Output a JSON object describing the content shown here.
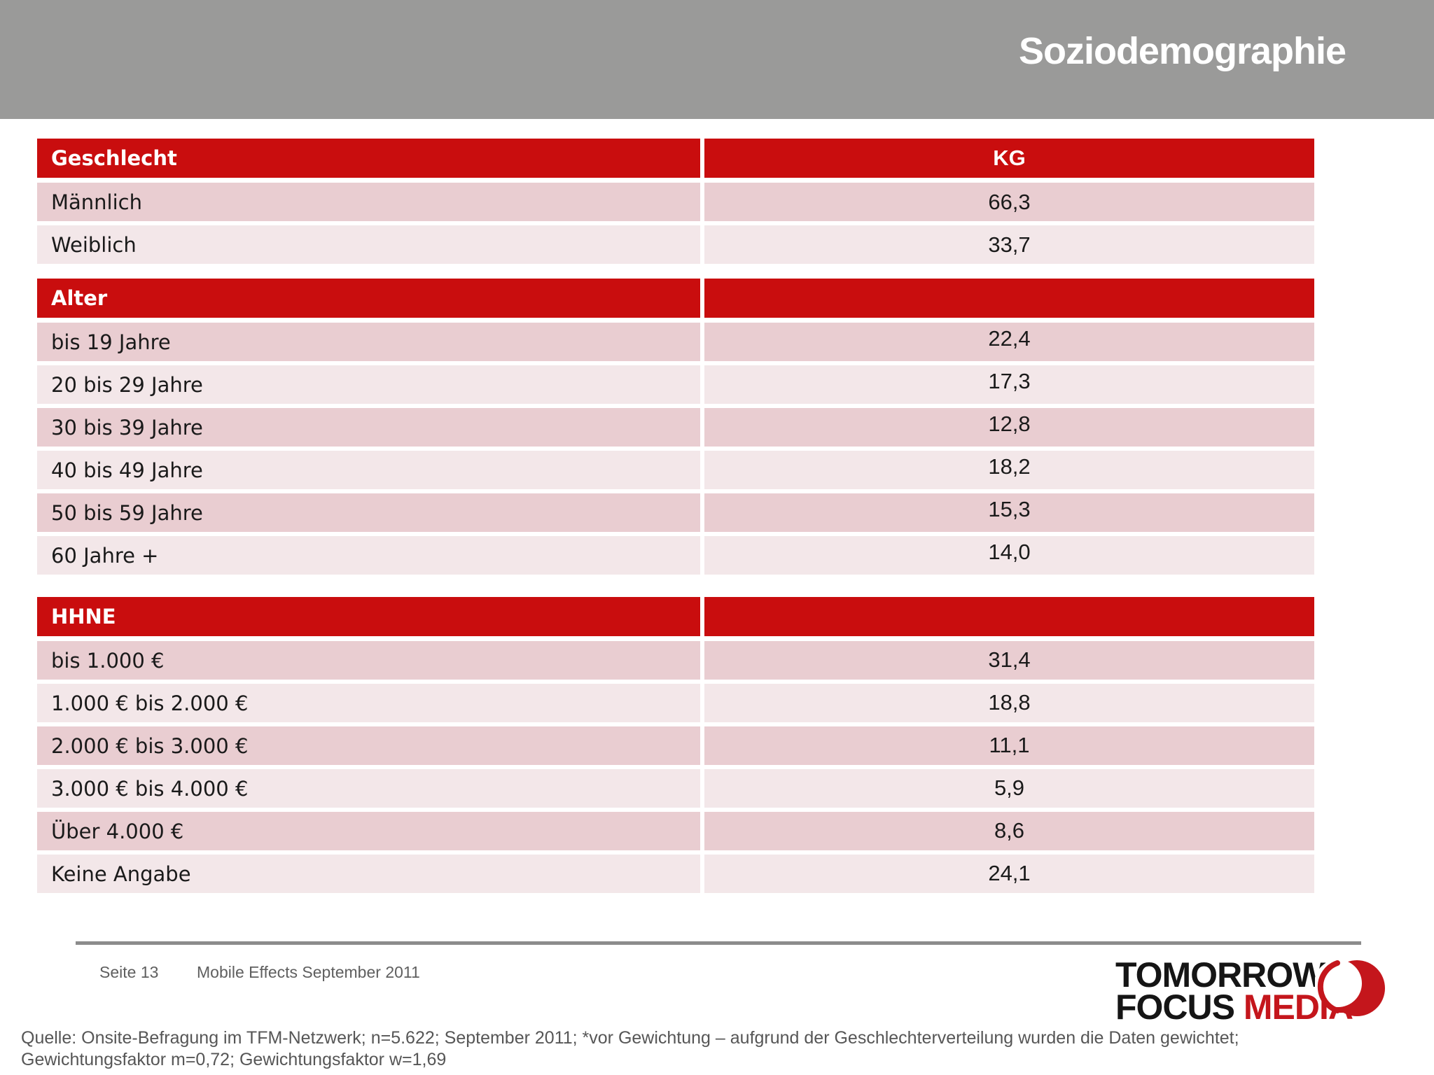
{
  "title": "Soziodemographie",
  "tables": [
    {
      "header": "Geschlecht",
      "value_header": "KG",
      "rows": [
        {
          "label": "Männlich",
          "value": "66,3"
        },
        {
          "label": "Weiblich",
          "value": "33,7"
        }
      ]
    },
    {
      "header": "Alter",
      "value_header": "",
      "rows": [
        {
          "label": "bis 19 Jahre",
          "value": "22,4"
        },
        {
          "label": "20 bis 29 Jahre",
          "value": "17,3"
        },
        {
          "label": "30 bis 39 Jahre",
          "value": "12,8"
        },
        {
          "label": "40 bis 49 Jahre",
          "value": "18,2"
        },
        {
          "label": "50 bis 59 Jahre",
          "value": "15,3"
        },
        {
          "label": "60 Jahre +",
          "value": "14,0"
        }
      ]
    },
    {
      "header": "HHNE",
      "value_header": "",
      "rows": [
        {
          "label": "bis 1.000 €",
          "value": "31,4"
        },
        {
          "label": "1.000 € bis 2.000 €",
          "value": "18,8"
        },
        {
          "label": "2.000 € bis 3.000 €",
          "value": "11,1"
        },
        {
          "label": "3.000 € bis 4.000 €",
          "value": "5,9"
        },
        {
          "label": "Über 4.000 €",
          "value": "8,6"
        },
        {
          "label": "Keine Angabe",
          "value": "24,1"
        }
      ]
    }
  ],
  "footer": {
    "page": "Seite 13",
    "report": "Mobile Effects September 2011"
  },
  "logo": {
    "line1": "TOMORROW",
    "line2_black": "FOCUS",
    "line2_red": "MEDIA"
  },
  "source": {
    "line1": "Quelle: Onsite-Befragung im TFM-Netzwerk; n=5.622; September 2011; *vor Gewichtung – aufgrund der Geschlechterverteilung wurden die Daten gewichtet;",
    "line2": "Gewichtungsfaktor m=0,72; Gewichtungsfaktor w=1,69"
  },
  "colors": {
    "brand_red": "#C90D0E",
    "row_dark": "#E9CDD1",
    "row_light": "#F3E7E9",
    "band_gray": "#9A9A99",
    "footer_line_gray": "#8C8C8C",
    "logo_red": "#C4161C",
    "text_dark": "#1A1A1A",
    "text_gray": "#5F5F5F"
  }
}
